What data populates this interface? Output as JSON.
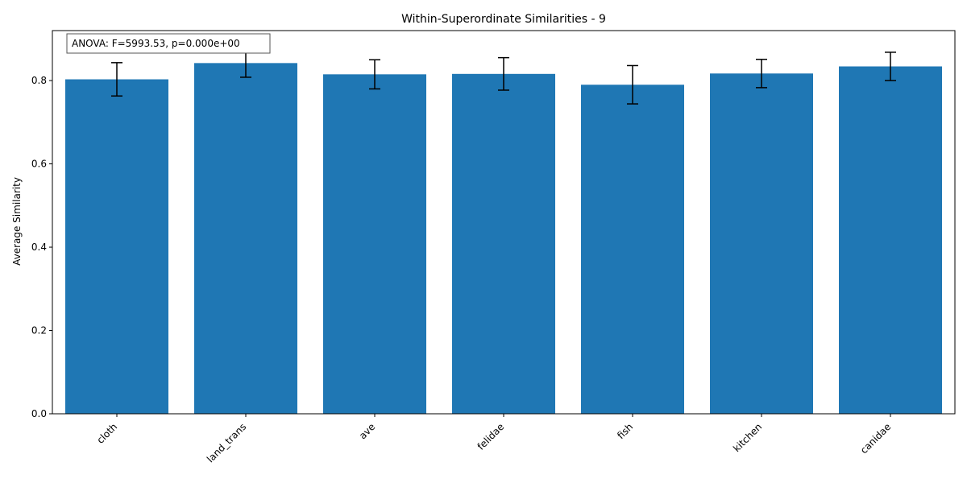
{
  "chart_data": {
    "type": "bar",
    "title": "Within-Superordinate Similarities - 9",
    "xlabel": "",
    "ylabel": "Average Similarity",
    "categories": [
      "cloth",
      "land_trans",
      "ave",
      "felidae",
      "fish",
      "kitchen",
      "canidae"
    ],
    "values": [
      0.803,
      0.842,
      0.815,
      0.816,
      0.79,
      0.817,
      0.834
    ],
    "errors": [
      0.04,
      0.034,
      0.035,
      0.039,
      0.046,
      0.034,
      0.034
    ],
    "ylim": [
      0,
      0.92
    ],
    "yticks": [
      0.0,
      0.2,
      0.4,
      0.6,
      0.8
    ],
    "ytick_labels": [
      "0.0",
      "0.2",
      "0.4",
      "0.6",
      "0.8"
    ],
    "bar_color": "#1f77b4",
    "error_color": "#000000",
    "grid": false,
    "annotation": "ANOVA: F=5993.53, p=0.000e+00"
  }
}
